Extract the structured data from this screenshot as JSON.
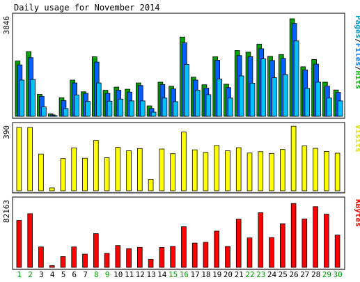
{
  "chart_data": {
    "type": "bar",
    "title": "Daily usage for November 2014",
    "x": [
      "1",
      "2",
      "3",
      "4",
      "5",
      "6",
      "7",
      "8",
      "9",
      "10",
      "11",
      "12",
      "13",
      "14",
      "15",
      "16",
      "17",
      "18",
      "19",
      "20",
      "21",
      "22",
      "23",
      "24",
      "25",
      "26",
      "27",
      "28",
      "29",
      "30"
    ],
    "weekend_days": [
      "1",
      "2",
      "8",
      "9",
      "15",
      "16",
      "22",
      "23",
      "29",
      "30"
    ],
    "panels": [
      {
        "id": "hits",
        "ymax_label": "3846",
        "ylim": [
          0,
          3846
        ],
        "legend": [
          {
            "text": "Pages",
            "color": "#00a0c8"
          },
          {
            "text": "/",
            "color": "#000000"
          },
          {
            "text": "Files",
            "color": "#0080ff"
          },
          {
            "text": "/",
            "color": "#000000"
          },
          {
            "text": "Hits",
            "color": "#00c000"
          }
        ],
        "series": [
          {
            "name": "Hits",
            "color": "#00a000",
            "values": [
              2120,
              2480,
              840,
              90,
              710,
              1390,
              940,
              2280,
              1000,
              1120,
              1040,
              1280,
              400,
              1310,
              1150,
              3040,
              1500,
              1210,
              2280,
              1230,
              2520,
              2460,
              2770,
              2300,
              2370,
              3740,
              1900,
              2180,
              1310,
              1010
            ]
          },
          {
            "name": "Files",
            "color": "#0060ff",
            "values": [
              1970,
              2250,
              760,
              55,
              600,
              1280,
              880,
              2080,
              880,
              1000,
              930,
              1180,
              300,
              1220,
              1050,
              2820,
              1390,
              1080,
              2150,
              1100,
              2330,
              2290,
              2590,
              2140,
              2220,
              3560,
              1780,
              2000,
              1160,
              920
            ]
          },
          {
            "name": "Pages",
            "color": "#00c0ff",
            "values": [
              1390,
              1410,
              360,
              25,
              300,
              820,
              570,
              1280,
              580,
              660,
              590,
              590,
              160,
              700,
              560,
              1990,
              1000,
              830,
              1430,
              700,
              1550,
              1270,
              2200,
              1480,
              1600,
              2890,
              1070,
              1310,
              700,
              590
            ]
          }
        ]
      },
      {
        "id": "visits",
        "ymax_label": "390",
        "ylim": [
          0,
          390
        ],
        "legend": [
          {
            "text": "Visits",
            "color": "#e0e000"
          }
        ],
        "series": [
          {
            "name": "Visits",
            "color": "#ffff00",
            "values": [
              377,
              377,
              219,
              17,
              192,
              256,
              194,
              300,
              197,
              259,
              239,
              252,
              69,
              249,
              221,
              350,
              244,
              229,
              270,
              239,
              257,
              225,
              233,
              223,
              246,
              385,
              267,
              253,
              235,
              224
            ]
          }
        ]
      },
      {
        "id": "kbytes",
        "ymax_label": "82163",
        "ylim": [
          0,
          82163
        ],
        "legend": [
          {
            "text": "KBytes",
            "color": "#ff0000"
          }
        ],
        "series": [
          {
            "name": "KBytes",
            "color": "#ff0000",
            "values": [
              57100,
              65300,
              24900,
              2100,
              13100,
              24900,
              16100,
              41100,
              17100,
              26500,
              22900,
              24300,
              9700,
              24200,
              25600,
              49500,
              29600,
              30500,
              44100,
              25500,
              58600,
              35800,
              66500,
              36300,
              53100,
              77800,
              58900,
              73900,
              64700,
              39400
            ]
          }
        ]
      }
    ]
  }
}
